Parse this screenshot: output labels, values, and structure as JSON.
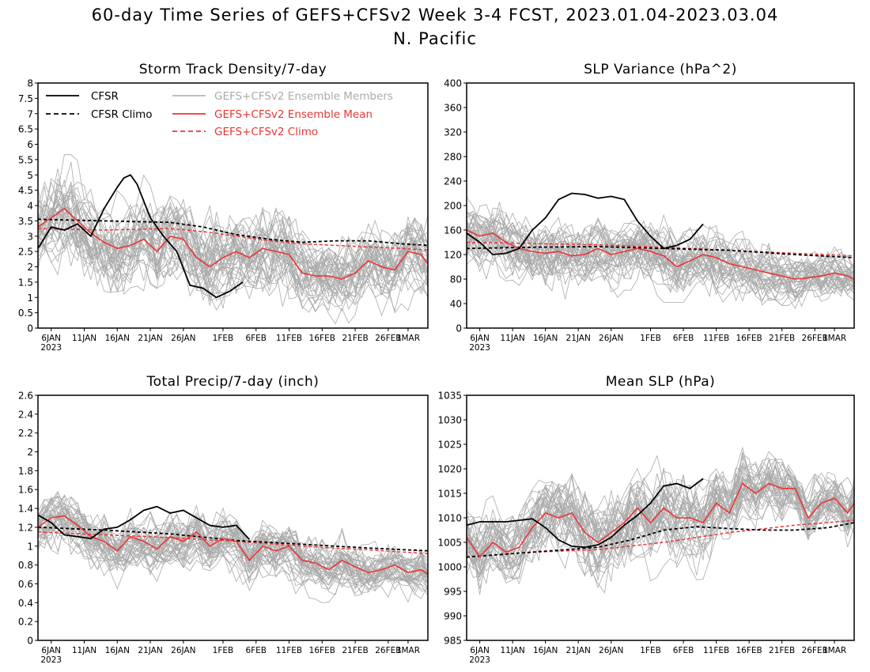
{
  "title_line1": "60-day Time Series of GEFS+CFSv2 Week 3-4 FCST, 2023.01.04-2023.03.04",
  "title_line2": "N. Pacific",
  "colors": {
    "members": "#aaaaaa",
    "ens_mean": "#ee3333",
    "gefs_climo": "#ee3333",
    "cfsr": "#000000",
    "cfsr_climo": "#000000"
  },
  "legend": {
    "cfsr": "CFSR",
    "cfsr_climo": "CFSR Climo",
    "members": "GEFS+CFSv2 Ensemble Members",
    "ens_mean": "GEFS+CFSv2 Ensemble Mean",
    "gefs_climo": "GEFS+CFSv2 Climo"
  },
  "x_tick_labels": [
    "6JAN",
    "11JAN",
    "16JAN",
    "21JAN",
    "26JAN",
    "1FEB",
    "6FEB",
    "11FEB",
    "16FEB",
    "21FEB",
    "26FEB",
    "1MAR"
  ],
  "x_tick_days": [
    2,
    7,
    12,
    17,
    22,
    28,
    33,
    38,
    43,
    48,
    53,
    56
  ],
  "x_year_label": "2023",
  "chart_data": [
    {
      "type": "line",
      "title": "Storm Track Density/7-day",
      "x_start": "2023-01-04",
      "x_end": "2023-03-04",
      "ylim": [
        0,
        8
      ],
      "y_ticks": [
        "0",
        "0.5",
        "1",
        "1.5",
        "2",
        "2.5",
        "3",
        "3.5",
        "4",
        "4.5",
        "5",
        "5.5",
        "6",
        "6.5",
        "7",
        "7.5",
        "8"
      ],
      "ens_spread": [
        [
          0.5,
          5.5
        ],
        [
          0.4,
          5.4
        ],
        [
          0.4,
          5.2
        ],
        [
          0.4,
          5.0
        ],
        [
          0.3,
          4.6
        ],
        [
          0.2,
          4.3
        ],
        [
          0.1,
          4.1
        ]
      ],
      "series": [
        {
          "name": "CFSR",
          "x": [
            0,
            2,
            4,
            6,
            8,
            10,
            12,
            13,
            14,
            15,
            17,
            19,
            21,
            23,
            25,
            27,
            29,
            31
          ],
          "values": [
            2.6,
            3.3,
            3.2,
            3.4,
            3.0,
            3.9,
            4.6,
            4.9,
            5.0,
            4.7,
            3.6,
            3.0,
            2.5,
            1.4,
            1.3,
            1.0,
            1.2,
            1.5
          ]
        },
        {
          "name": "CFSR Climo",
          "x": [
            0,
            10,
            20,
            25,
            30,
            35,
            40,
            45,
            50,
            55,
            59
          ],
          "values": [
            3.55,
            3.5,
            3.45,
            3.3,
            3.05,
            2.9,
            2.8,
            2.85,
            2.85,
            2.75,
            2.7
          ]
        },
        {
          "name": "GEFS+CFSv2 Ensemble Mean",
          "x": [
            0,
            2,
            4,
            6,
            8,
            10,
            12,
            14,
            16,
            18,
            20,
            22,
            24,
            26,
            28,
            30,
            32,
            34,
            36,
            38,
            40,
            42,
            44,
            46,
            48,
            50,
            52,
            54,
            56,
            58,
            59
          ],
          "values": [
            3.3,
            3.6,
            3.9,
            3.5,
            3.1,
            2.8,
            2.6,
            2.7,
            2.9,
            2.5,
            3.0,
            2.9,
            2.3,
            2.0,
            2.3,
            2.5,
            2.3,
            2.6,
            2.5,
            2.4,
            1.8,
            1.7,
            1.7,
            1.6,
            1.8,
            2.2,
            2.0,
            1.9,
            2.5,
            2.4,
            2.1
          ]
        },
        {
          "name": "GEFS+CFSv2 Climo",
          "x": [
            0,
            10,
            20,
            25,
            30,
            35,
            40,
            45,
            50,
            55,
            59
          ],
          "values": [
            3.25,
            3.2,
            3.25,
            3.15,
            3.0,
            2.85,
            2.75,
            2.7,
            2.65,
            2.6,
            2.55
          ]
        }
      ]
    },
    {
      "type": "line",
      "title": "SLP Variance (hPa^2)",
      "x_start": "2023-01-04",
      "x_end": "2023-03-04",
      "ylim": [
        0,
        400
      ],
      "y_ticks": [
        "0",
        "40",
        "80",
        "120",
        "160",
        "200",
        "240",
        "280",
        "320",
        "360",
        "400"
      ],
      "ens_spread": [
        [
          60,
          250
        ],
        [
          55,
          240
        ],
        [
          55,
          235
        ],
        [
          50,
          230
        ],
        [
          45,
          200
        ],
        [
          40,
          180
        ],
        [
          35,
          175
        ]
      ],
      "series": [
        {
          "name": "CFSR",
          "x": [
            0,
            2,
            4,
            6,
            8,
            10,
            12,
            14,
            16,
            18,
            20,
            22,
            24,
            26,
            28,
            30,
            32,
            34,
            36
          ],
          "values": [
            155,
            140,
            120,
            122,
            130,
            160,
            180,
            210,
            220,
            218,
            212,
            215,
            210,
            175,
            150,
            130,
            135,
            145,
            170
          ]
        },
        {
          "name": "CFSR Climo",
          "x": [
            0,
            10,
            20,
            30,
            40,
            50,
            59
          ],
          "values": [
            130,
            132,
            133,
            130,
            127,
            120,
            115
          ]
        },
        {
          "name": "GEFS+CFSv2 Ensemble Mean",
          "x": [
            0,
            2,
            4,
            6,
            8,
            10,
            12,
            14,
            16,
            18,
            20,
            22,
            24,
            26,
            28,
            30,
            32,
            34,
            36,
            38,
            40,
            42,
            44,
            46,
            48,
            50,
            52,
            54,
            56,
            58,
            59
          ],
          "values": [
            160,
            150,
            155,
            140,
            130,
            125,
            122,
            125,
            118,
            120,
            130,
            120,
            125,
            130,
            125,
            118,
            100,
            110,
            120,
            115,
            105,
            100,
            95,
            90,
            85,
            80,
            82,
            85,
            90,
            85,
            80
          ]
        },
        {
          "name": "GEFS+CFSv2 Climo",
          "x": [
            0,
            10,
            20,
            30,
            40,
            50,
            59
          ],
          "values": [
            140,
            138,
            136,
            132,
            127,
            122,
            118
          ]
        }
      ]
    },
    {
      "type": "line",
      "title": "Total Precip/7-day (inch)",
      "x_start": "2023-01-04",
      "x_end": "2023-03-04",
      "ylim": [
        0,
        2.6
      ],
      "y_ticks": [
        "0",
        "0.2",
        "0.4",
        "0.6",
        "0.8",
        "1",
        "1.2",
        "1.4",
        "1.6",
        "1.8",
        "2",
        "2.2",
        "2.4",
        "2.6"
      ],
      "ens_spread": [
        [
          0.7,
          1.7
        ],
        [
          0.6,
          1.6
        ],
        [
          0.55,
          1.55
        ],
        [
          0.5,
          1.5
        ],
        [
          0.45,
          1.35
        ],
        [
          0.4,
          1.2
        ],
        [
          0.35,
          1.1
        ]
      ],
      "series": [
        {
          "name": "CFSR",
          "x": [
            0,
            2,
            4,
            6,
            8,
            10,
            12,
            14,
            16,
            18,
            20,
            22,
            24,
            26,
            28,
            30,
            32
          ],
          "values": [
            1.33,
            1.25,
            1.12,
            1.1,
            1.08,
            1.18,
            1.2,
            1.28,
            1.38,
            1.42,
            1.35,
            1.38,
            1.3,
            1.22,
            1.2,
            1.22,
            1.07
          ]
        },
        {
          "name": "CFSR Climo",
          "x": [
            0,
            10,
            20,
            30,
            40,
            50,
            59
          ],
          "values": [
            1.2,
            1.17,
            1.13,
            1.06,
            1.02,
            0.98,
            0.95
          ]
        },
        {
          "name": "GEFS+CFSv2 Ensemble Mean",
          "x": [
            0,
            2,
            4,
            6,
            8,
            10,
            12,
            14,
            16,
            18,
            20,
            22,
            24,
            26,
            28,
            30,
            32,
            34,
            36,
            38,
            40,
            42,
            44,
            46,
            48,
            50,
            52,
            54,
            56,
            58,
            59
          ],
          "values": [
            1.2,
            1.3,
            1.32,
            1.22,
            1.1,
            1.05,
            0.95,
            1.1,
            1.05,
            0.97,
            1.1,
            1.05,
            1.15,
            1.0,
            1.08,
            1.05,
            0.85,
            1.0,
            0.95,
            1.0,
            0.85,
            0.82,
            0.75,
            0.85,
            0.78,
            0.72,
            0.75,
            0.8,
            0.72,
            0.75,
            0.7
          ]
        },
        {
          "name": "GEFS+CFSv2 Climo",
          "x": [
            0,
            10,
            20,
            30,
            40,
            50,
            59
          ],
          "values": [
            1.15,
            1.12,
            1.09,
            1.05,
            1.0,
            0.96,
            0.92
          ]
        }
      ]
    },
    {
      "type": "line",
      "title": "Mean SLP (hPa)",
      "x_start": "2023-01-04",
      "x_end": "2023-03-04",
      "ylim": [
        985,
        1035
      ],
      "y_ticks": [
        "985",
        "990",
        "995",
        "1000",
        "1005",
        "1010",
        "1015",
        "1020",
        "1025",
        "1030",
        "1035"
      ],
      "ens_spread": [
        [
          989,
          1015
        ],
        [
          990,
          1018
        ],
        [
          992,
          1022
        ],
        [
          995,
          1024
        ],
        [
          1000,
          1024
        ],
        [
          1002,
          1023
        ],
        [
          1003,
          1022
        ]
      ],
      "series": [
        {
          "name": "CFSR",
          "x": [
            0,
            2,
            4,
            6,
            8,
            10,
            12,
            14,
            16,
            18,
            20,
            22,
            24,
            26,
            28,
            30,
            32,
            34,
            36
          ],
          "values": [
            1008.5,
            1009.2,
            1009.2,
            1009.2,
            1009.5,
            1009.8,
            1008.0,
            1005.5,
            1004.2,
            1004.0,
            1004.5,
            1006.0,
            1008.5,
            1010.5,
            1013.0,
            1016.5,
            1017.0,
            1016.0,
            1018.0
          ]
        },
        {
          "name": "CFSR Climo",
          "x": [
            0,
            10,
            20,
            25,
            30,
            35,
            40,
            45,
            50,
            55,
            59
          ],
          "values": [
            1002,
            1003,
            1004,
            1005.5,
            1007.5,
            1008.2,
            1007.8,
            1007.5,
            1007.5,
            1008.0,
            1009.0
          ]
        },
        {
          "name": "GEFS+CFSv2 Ensemble Mean",
          "x": [
            0,
            2,
            4,
            6,
            8,
            10,
            12,
            14,
            16,
            18,
            20,
            22,
            24,
            26,
            28,
            30,
            32,
            34,
            36,
            38,
            40,
            42,
            44,
            46,
            48,
            50,
            52,
            54,
            56,
            58,
            59
          ],
          "values": [
            1006,
            1002,
            1005,
            1003,
            1004,
            1008,
            1011,
            1010,
            1011,
            1007,
            1005,
            1007,
            1009,
            1012,
            1009,
            1012,
            1010,
            1010,
            1009,
            1013,
            1011,
            1017,
            1015,
            1017,
            1016,
            1016,
            1010,
            1013,
            1014,
            1011,
            1013
          ]
        },
        {
          "name": "GEFS+CFSv2 Climo",
          "x": [
            0,
            10,
            20,
            30,
            40,
            50,
            59
          ],
          "values": [
            1002,
            1003,
            1003.5,
            1005,
            1007,
            1008.5,
            1009.5
          ]
        }
      ]
    }
  ]
}
